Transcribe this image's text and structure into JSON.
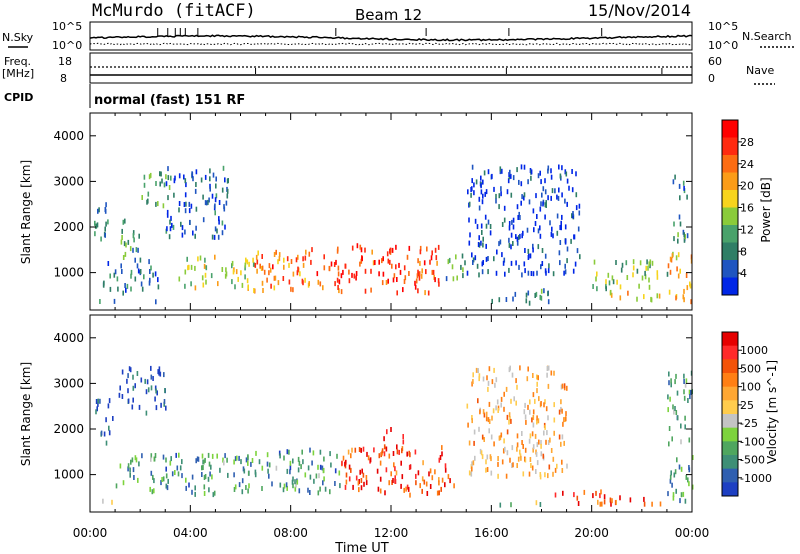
{
  "header": {
    "station": "McMurdo (fitACF)",
    "beam": "Beam 12",
    "date": "15/Nov/2014"
  },
  "top_panel": {
    "left_label": "N.Sky",
    "left_ticks": [
      "10^5",
      "10^0"
    ],
    "right_ticks": [
      "10^5",
      "10^0"
    ],
    "right_label": "N.Search"
  },
  "freq_panel": {
    "left_label": "Freq.",
    "unit": "[MHz]",
    "left_ticks": [
      "18",
      "8"
    ],
    "right_ticks": [
      "60",
      "0"
    ],
    "right_label": "Nave",
    "cpid_label": "CPID",
    "mode_text": "normal (fast) 151 RF"
  },
  "chart_data": [
    {
      "type": "heatmap",
      "name": "power",
      "ylabel": "Slant Range [km]",
      "xlabel": "",
      "x_ticks": [
        "00:00",
        "04:00",
        "08:00",
        "12:00",
        "16:00",
        "20:00",
        "00:00"
      ],
      "xlim_hours": [
        0,
        24
      ],
      "y_ticks": [
        1000,
        2000,
        3000,
        4000
      ],
      "ylim_km": [
        180,
        4500
      ],
      "colorbar_label": "Power [dB]",
      "colorbar_ticks": [
        "4",
        "8",
        "12",
        "16",
        "20",
        "24",
        "28"
      ],
      "colors": [
        "#0026e6",
        "#1f55c0",
        "#2f7e66",
        "#49a26b",
        "#8acb3a",
        "#f7d41d",
        "#fb9c18",
        "#fd6c12",
        "#ff2a10",
        "#ff0000"
      ],
      "scatter_regions": [
        {
          "t": [
            0.1,
            0.5
          ],
          "r": [
            400,
            470
          ],
          "level": 0.3
        },
        {
          "t": [
            0.6,
            2.6
          ],
          "r": [
            380,
            430
          ],
          "level": 0.1
        },
        {
          "t": [
            0.0,
            0.7
          ],
          "r": [
            1700,
            2700
          ],
          "level": 0.25
        },
        {
          "t": [
            0.5,
            2.8
          ],
          "r": [
            600,
            1300
          ],
          "level": 0.2
        },
        {
          "t": [
            1.0,
            2.0
          ],
          "r": [
            1300,
            2200
          ],
          "level": 0.3
        },
        {
          "t": [
            2.0,
            3.2
          ],
          "r": [
            2500,
            3300
          ],
          "level": 0.35
        },
        {
          "t": [
            3.0,
            5.5
          ],
          "r": [
            1800,
            3400
          ],
          "level": 0.15
        },
        {
          "t": [
            3.5,
            6.5
          ],
          "r": [
            700,
            1400
          ],
          "level": 0.45
        },
        {
          "t": [
            6.5,
            9.5
          ],
          "r": [
            650,
            1600
          ],
          "level": 0.75
        },
        {
          "t": [
            9.5,
            14.0
          ],
          "r": [
            600,
            1650
          ],
          "level": 0.85
        },
        {
          "t": [
            14.0,
            15.0
          ],
          "r": [
            900,
            1450
          ],
          "level": 0.35
        },
        {
          "t": [
            15.0,
            19.5
          ],
          "r": [
            1000,
            3400
          ],
          "level": 0.1
        },
        {
          "t": [
            16.0,
            18.5
          ],
          "r": [
            380,
            700
          ],
          "level": 0.25
        },
        {
          "t": [
            20.5,
            23.0
          ],
          "r": [
            450,
            650
          ],
          "level": 0.55
        },
        {
          "t": [
            20.0,
            23.0
          ],
          "r": [
            700,
            1300
          ],
          "level": 0.4
        },
        {
          "t": [
            23.0,
            24.0
          ],
          "r": [
            400,
            1500
          ],
          "level": 0.6
        },
        {
          "t": [
            23.2,
            23.8
          ],
          "r": [
            1700,
            3200
          ],
          "level": 0.25
        }
      ]
    },
    {
      "type": "heatmap",
      "name": "velocity",
      "ylabel": "Slant Range [km]",
      "xlabel": "Time UT",
      "x_ticks": [
        "00:00",
        "04:00",
        "08:00",
        "12:00",
        "16:00",
        "20:00",
        "00:00"
      ],
      "xlim_hours": [
        0,
        24
      ],
      "y_ticks": [
        1000,
        2000,
        3000,
        4000
      ],
      "ylim_km": [
        180,
        4500
      ],
      "colorbar_label": "Velocity [m s^-1]",
      "colorbar_ticks": [
        "1000",
        "500",
        "100",
        "25",
        "-25",
        "-100",
        "-500",
        "-1000"
      ],
      "colors": [
        "#1d3fc2",
        "#2f5fb0",
        "#3e8f76",
        "#4fa65f",
        "#7dd33d",
        "#c4c4c4",
        "#ffcc4d",
        "#ffa733",
        "#ff7f14",
        "#f45308",
        "#ff2a2a",
        "#e60000"
      ],
      "scatter_regions": [
        {
          "t": [
            0.1,
            1.2
          ],
          "r": [
            400,
            480
          ],
          "level": 0.4
        },
        {
          "t": [
            0.2,
            0.9
          ],
          "r": [
            1700,
            2700
          ],
          "level": 0.05
        },
        {
          "t": [
            1.0,
            3.0
          ],
          "r": [
            2400,
            3400
          ],
          "level": 0.05
        },
        {
          "t": [
            1.0,
            6.5
          ],
          "r": [
            600,
            1500
          ],
          "level": 0.25
        },
        {
          "t": [
            6.5,
            10.0
          ],
          "r": [
            650,
            1600
          ],
          "level": 0.25
        },
        {
          "t": [
            10.0,
            14.5
          ],
          "r": [
            600,
            1650
          ],
          "level": 0.82
        },
        {
          "t": [
            11.5,
            12.5
          ],
          "r": [
            1500,
            2100
          ],
          "level": 0.82
        },
        {
          "t": [
            15.0,
            19.0
          ],
          "r": [
            1000,
            3400
          ],
          "level": 0.6
        },
        {
          "t": [
            16.0,
            18.5
          ],
          "r": [
            380,
            450
          ],
          "level": 0.35
        },
        {
          "t": [
            18.5,
            20.5
          ],
          "r": [
            400,
            700
          ],
          "level": 0.85
        },
        {
          "t": [
            20.0,
            23.0
          ],
          "r": [
            400,
            600
          ],
          "level": 0.8
        },
        {
          "t": [
            23.0,
            24.0
          ],
          "r": [
            400,
            1500
          ],
          "level": 0.25
        },
        {
          "t": [
            23.0,
            24.0
          ],
          "r": [
            1700,
            3300
          ],
          "level": 0.3
        }
      ]
    }
  ]
}
